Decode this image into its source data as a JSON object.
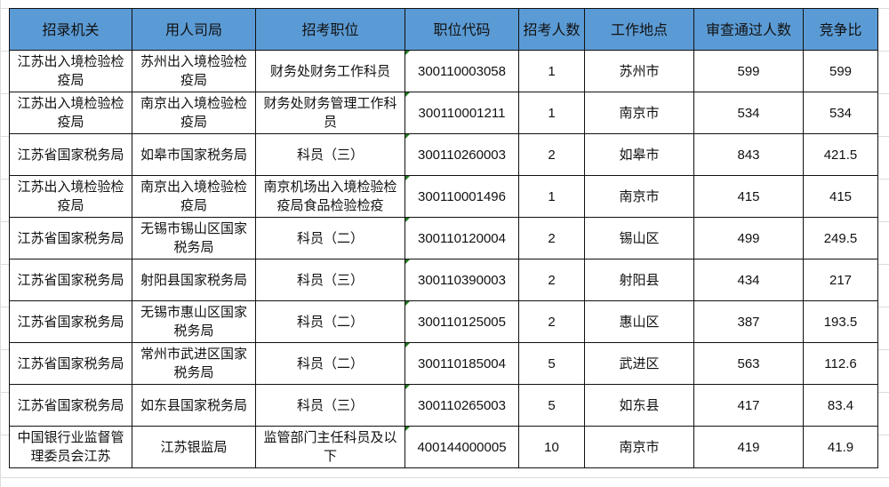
{
  "headers": [
    "招录机关",
    "用人司局",
    "招考职位",
    "职位代码",
    "招考人数",
    "工作地点",
    "审查通过人数",
    "竞争比"
  ],
  "rows": [
    [
      "江苏出入境检验检疫局",
      "苏州出入境检验检疫局",
      "财务处财务工作科员",
      "300110003058",
      "1",
      "苏州市",
      "599",
      "599"
    ],
    [
      "江苏出入境检验检疫局",
      "南京出入境检验检疫局",
      "财务处财务管理工作科员",
      "300110001211",
      "1",
      "南京市",
      "534",
      "534"
    ],
    [
      "江苏省国家税务局",
      "如皋市国家税务局",
      "科员（三）",
      "300110260003",
      "2",
      "如皋市",
      "843",
      "421.5"
    ],
    [
      "江苏出入境检验检疫局",
      "南京出入境检验检疫局",
      "南京机场出入境检验检疫局食品检验检疫",
      "300110001496",
      "1",
      "南京市",
      "415",
      "415"
    ],
    [
      "江苏省国家税务局",
      "无锡市锡山区国家税务局",
      "科员（二）",
      "300110120004",
      "2",
      "锡山区",
      "499",
      "249.5"
    ],
    [
      "江苏省国家税务局",
      "射阳县国家税务局",
      "科员（三）",
      "300110390003",
      "2",
      "射阳县",
      "434",
      "217"
    ],
    [
      "江苏省国家税务局",
      "无锡市惠山区国家税务局",
      "科员（二）",
      "300110125005",
      "2",
      "惠山区",
      "387",
      "193.5"
    ],
    [
      "江苏省国家税务局",
      "常州市武进区国家税务局",
      "科员（二）",
      "300110185004",
      "5",
      "武进区",
      "563",
      "112.6"
    ],
    [
      "江苏省国家税务局",
      "如东县国家税务局",
      "科员（三）",
      "300110265003",
      "5",
      "如东县",
      "417",
      "83.4"
    ],
    [
      "中国银行业监督管理委员会江苏",
      "江苏银监局",
      "监管部门主任科员及以下",
      "400144000005",
      "10",
      "南京市",
      "419",
      "41.9"
    ]
  ],
  "colors": {
    "header_bg": "#5b9bd5",
    "border": "#111111",
    "cell_marker": "#1f7a1f"
  }
}
